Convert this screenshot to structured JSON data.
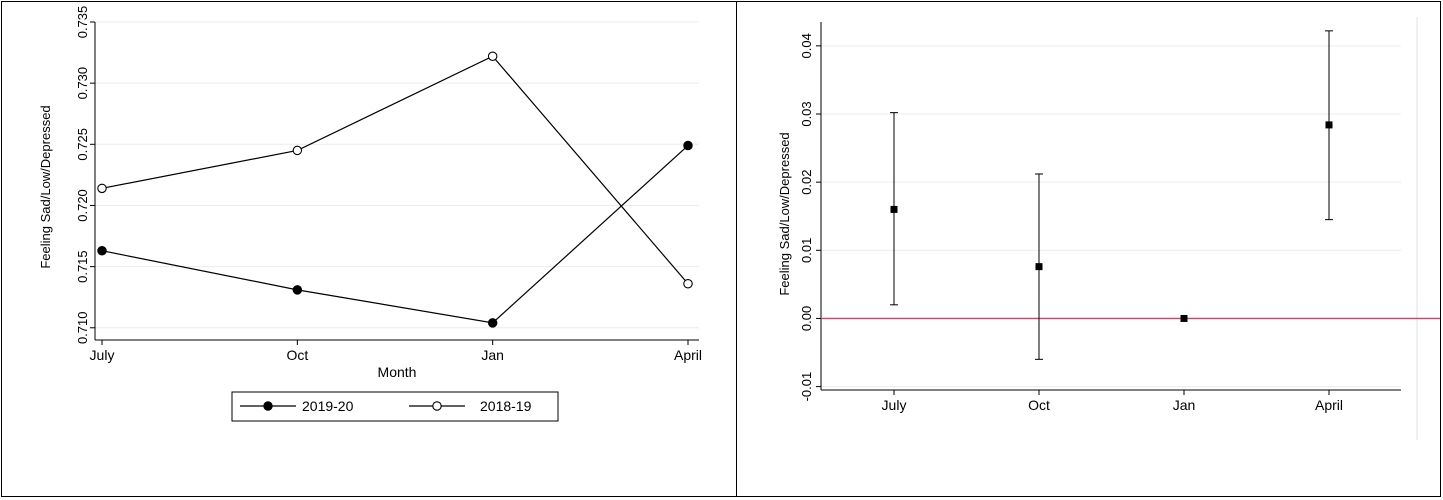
{
  "chart_data": [
    {
      "type": "line",
      "categories": [
        "July",
        "Oct",
        "Jan",
        "April"
      ],
      "xlabel": "Month",
      "ylabel": "Feeling Sad/Low/Depressed",
      "ylim": [
        0.709,
        0.735
      ],
      "yticks": [
        "0.710",
        "0.715",
        "0.720",
        "0.725",
        "0.730",
        "0.735"
      ],
      "ytick_values": [
        0.71,
        0.715,
        0.72,
        0.725,
        0.73,
        0.735
      ],
      "grid": true,
      "legend_placement": "bottom",
      "series": [
        {
          "name": "2019-20",
          "marker": "filled-circle",
          "values": [
            0.7163,
            0.7131,
            0.7104,
            0.7249
          ]
        },
        {
          "name": "2018-19",
          "marker": "hollow-circle",
          "values": [
            0.7214,
            0.7245,
            0.7322,
            0.7136
          ]
        }
      ]
    },
    {
      "type": "scatter",
      "categories": [
        "July",
        "Oct",
        "Jan",
        "April"
      ],
      "xlabel": "",
      "ylabel": "Feeling Sad/Low/Depressed",
      "ylim": [
        -0.0105,
        0.0435
      ],
      "yticks": [
        "-0.01",
        "0.00",
        "0.01",
        "0.02",
        "0.03",
        "0.04"
      ],
      "ytick_values": [
        -0.01,
        0.0,
        0.01,
        0.02,
        0.03,
        0.04
      ],
      "grid": true,
      "reference_line": {
        "value": 0.0,
        "color": "#c0506a"
      },
      "estimates": [
        0.016,
        0.0076,
        0.0,
        0.0284
      ],
      "ci_low": [
        0.002,
        -0.006,
        0.0,
        0.0145
      ],
      "ci_high": [
        0.0302,
        0.0212,
        0.0,
        0.0422
      ]
    }
  ]
}
